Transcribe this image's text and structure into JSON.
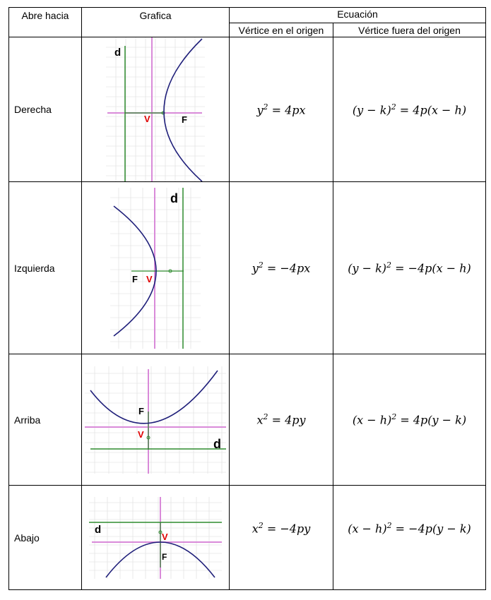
{
  "table": {
    "headers": {
      "opens": "Abre hacia",
      "graph": "Grafica",
      "equation": "Ecuación",
      "vertex_origin": "Vértice en el origen",
      "vertex_off_origin": "Vértice fuera del origen"
    },
    "rows": [
      {
        "label": "Derecha",
        "eq_origin": {
          "lhs": "y",
          "exp": "2",
          "rhs": " = 4px"
        },
        "eq_shift": {
          "lhs": "(y − k)",
          "exp": "2",
          "rhs": " = 4p(x − h)"
        },
        "graph": {
          "directrix": "d",
          "vertex": "V",
          "focus": "F"
        }
      },
      {
        "label": "Izquierda",
        "eq_origin": {
          "lhs": "y",
          "exp": "2",
          "rhs": " = −4px"
        },
        "eq_shift": {
          "lhs": "(y − k)",
          "exp": "2",
          "rhs": " = −4p(x − h)"
        },
        "graph": {
          "directrix": "d",
          "vertex": "V",
          "focus": "F"
        }
      },
      {
        "label": "Arriba",
        "eq_origin": {
          "lhs": "x",
          "exp": "2",
          "rhs": " = 4py"
        },
        "eq_shift": {
          "lhs": "(x − h)",
          "exp": "2",
          "rhs": " = 4p(y − k)"
        },
        "graph": {
          "directrix": "d",
          "vertex": "V",
          "focus": "F"
        }
      },
      {
        "label": "Abajo",
        "eq_origin": {
          "lhs": "x",
          "exp": "2",
          "rhs": " = −4py"
        },
        "eq_shift": {
          "lhs": "(x − h)",
          "exp": "2",
          "rhs": " = −4p(y − k)"
        },
        "graph": {
          "directrix": "d",
          "vertex": "V",
          "focus": "F"
        }
      }
    ]
  },
  "colors": {
    "curve": "#1f1f7a",
    "axis": "#d98ad9",
    "directrix": "#2e8b2e",
    "vertex_label": "#e00000",
    "grid": "#dcdcdc"
  }
}
